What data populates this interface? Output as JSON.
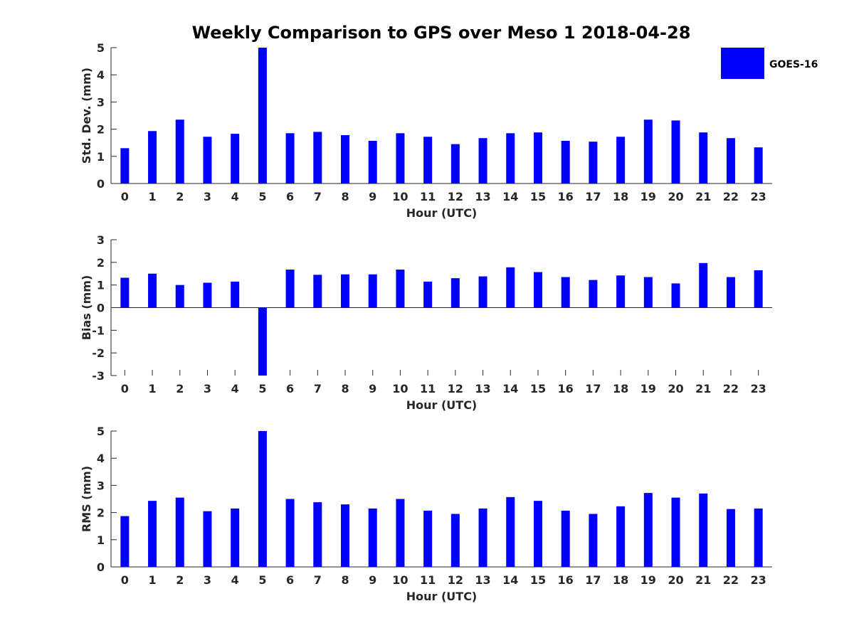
{
  "title": "Weekly Comparison to GPS over Meso 1 2018-04-28",
  "legend": {
    "label": "GOES-16",
    "color": "#0000ff",
    "placement": "top-right"
  },
  "bar_color": "#0000ff",
  "chart_data": [
    {
      "type": "bar",
      "xlabel": "Hour (UTC)",
      "ylabel": "Std. Dev. (mm)",
      "ylim": [
        0,
        5
      ],
      "yticks": [
        0,
        1,
        2,
        3,
        4,
        5
      ],
      "categories": [
        "0",
        "1",
        "2",
        "3",
        "4",
        "5",
        "6",
        "7",
        "8",
        "9",
        "10",
        "11",
        "12",
        "13",
        "14",
        "15",
        "16",
        "17",
        "18",
        "19",
        "20",
        "21",
        "22",
        "23"
      ],
      "series": [
        {
          "name": "GOES-16",
          "values": [
            1.3,
            1.93,
            2.35,
            1.72,
            1.83,
            5.0,
            1.85,
            1.9,
            1.78,
            1.57,
            1.85,
            1.72,
            1.45,
            1.67,
            1.85,
            1.88,
            1.57,
            1.54,
            1.72,
            2.35,
            2.32,
            1.88,
            1.67,
            1.33
          ]
        }
      ]
    },
    {
      "type": "bar",
      "xlabel": "Hour (UTC)",
      "ylabel": "Bias (mm)",
      "ylim": [
        -3,
        3
      ],
      "yticks": [
        -3,
        -2,
        -1,
        0,
        1,
        2,
        3
      ],
      "categories": [
        "0",
        "1",
        "2",
        "3",
        "4",
        "5",
        "6",
        "7",
        "8",
        "9",
        "10",
        "11",
        "12",
        "13",
        "14",
        "15",
        "16",
        "17",
        "18",
        "19",
        "20",
        "21",
        "22",
        "23"
      ],
      "series": [
        {
          "name": "GOES-16",
          "values": [
            1.32,
            1.5,
            1.0,
            1.1,
            1.15,
            -3.0,
            1.68,
            1.45,
            1.47,
            1.47,
            1.68,
            1.15,
            1.3,
            1.38,
            1.78,
            1.57,
            1.35,
            1.22,
            1.42,
            1.35,
            1.07,
            1.97,
            1.35,
            1.65
          ]
        }
      ]
    },
    {
      "type": "bar",
      "xlabel": "Hour (UTC)",
      "ylabel": "RMS (mm)",
      "ylim": [
        0,
        5
      ],
      "yticks": [
        0,
        1,
        2,
        3,
        4,
        5
      ],
      "categories": [
        "0",
        "1",
        "2",
        "3",
        "4",
        "5",
        "6",
        "7",
        "8",
        "9",
        "10",
        "11",
        "12",
        "13",
        "14",
        "15",
        "16",
        "17",
        "18",
        "19",
        "20",
        "21",
        "22",
        "23"
      ],
      "series": [
        {
          "name": "GOES-16",
          "values": [
            1.87,
            2.43,
            2.55,
            2.05,
            2.15,
            5.0,
            2.5,
            2.38,
            2.3,
            2.15,
            2.5,
            2.07,
            1.95,
            2.15,
            2.57,
            2.43,
            2.07,
            1.95,
            2.23,
            2.72,
            2.55,
            2.7,
            2.13,
            2.15
          ]
        }
      ]
    }
  ]
}
